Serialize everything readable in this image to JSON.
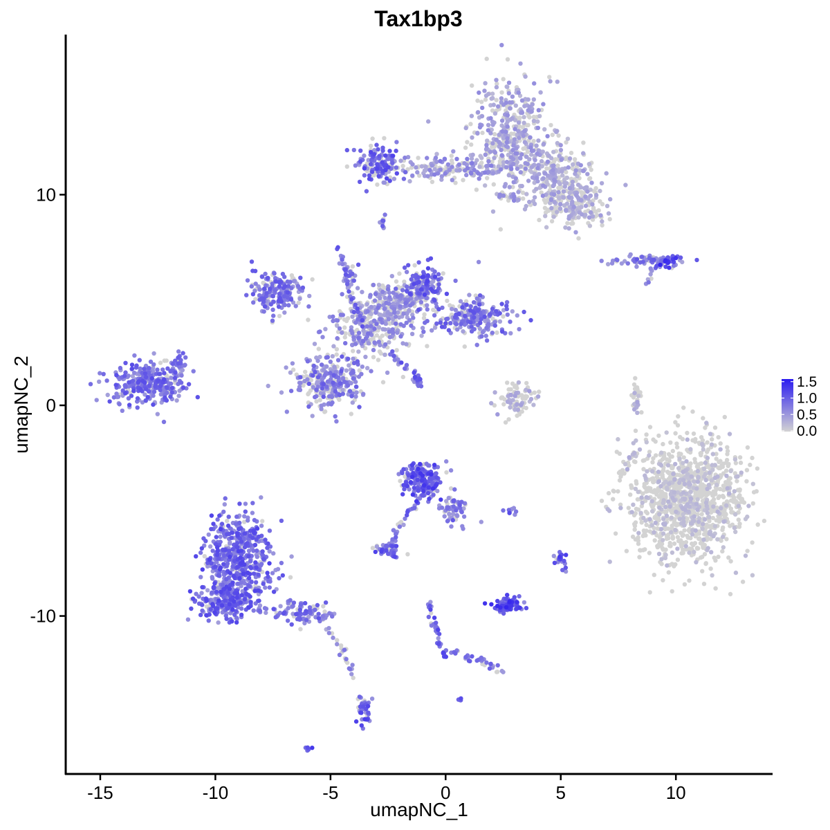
{
  "chart_data": {
    "type": "scatter",
    "title": "Tax1bp3",
    "xlabel": "umapNC_1",
    "ylabel": "umapNC_2",
    "xlim": [
      -16.5,
      14.2
    ],
    "ylim": [
      -17.5,
      17.6
    ],
    "x_ticks": [
      -15,
      -10,
      -5,
      0,
      5,
      10
    ],
    "x_tick_labels": [
      "-15",
      "-10",
      "-5",
      "0",
      "5",
      "10"
    ],
    "y_ticks": [
      10,
      0,
      -10
    ],
    "y_tick_labels": [
      "10",
      "0",
      "-10"
    ],
    "grid": false,
    "color_scale": {
      "low_color": "#d3d3d3",
      "high_color": "#2b1bf0",
      "range": [
        0,
        1.6
      ],
      "ticks": [
        1.5,
        1.0,
        0.5,
        0.0
      ],
      "tick_labels": [
        "1.5",
        "1.0",
        "0.5",
        "0.0"
      ],
      "placement": "right"
    },
    "clusters": [
      {
        "x": 2.8,
        "y": 12.8,
        "rx": 1.6,
        "ry": 2.6,
        "n": 420,
        "expr": 0.45,
        "p": 0.6
      },
      {
        "x": 4.8,
        "y": 11.0,
        "rx": 1.5,
        "ry": 1.2,
        "n": 220,
        "expr": 0.4,
        "p": 0.55
      },
      {
        "x": 5.6,
        "y": 9.6,
        "rx": 1.3,
        "ry": 1.1,
        "n": 200,
        "expr": 0.35,
        "p": 0.5
      },
      {
        "x": 0.0,
        "y": 11.2,
        "rx": 2.8,
        "ry": 0.5,
        "n": 160,
        "expr": 0.55,
        "p": 0.6
      },
      {
        "x": -3.0,
        "y": 11.5,
        "rx": 0.9,
        "ry": 0.8,
        "n": 120,
        "expr": 0.9,
        "p": 0.8
      },
      {
        "x": -2.7,
        "y": 8.7,
        "rx": 0.2,
        "ry": 0.3,
        "n": 10,
        "expr": 0.8,
        "p": 0.7
      },
      {
        "x": 8.8,
        "y": 6.9,
        "rx": 1.5,
        "ry": 0.2,
        "n": 70,
        "expr": 0.8,
        "p": 0.7
      },
      {
        "x": 9.6,
        "y": 6.8,
        "rx": 0.5,
        "ry": 0.3,
        "n": 30,
        "expr": 1.1,
        "p": 0.9
      },
      {
        "x": -7.3,
        "y": 5.4,
        "rx": 1.0,
        "ry": 0.9,
        "n": 190,
        "expr": 0.8,
        "p": 0.8
      },
      {
        "x": -1.0,
        "y": 5.6,
        "rx": 0.8,
        "ry": 0.9,
        "n": 170,
        "expr": 0.9,
        "p": 0.8
      },
      {
        "x": 1.1,
        "y": 4.2,
        "rx": 1.5,
        "ry": 0.8,
        "n": 220,
        "expr": 0.8,
        "p": 0.75
      },
      {
        "x": -3.3,
        "y": 3.6,
        "rx": 1.6,
        "ry": 1.2,
        "n": 260,
        "expr": 0.6,
        "p": 0.6
      },
      {
        "x": -5.0,
        "y": 1.1,
        "rx": 1.4,
        "ry": 1.1,
        "n": 280,
        "expr": 0.75,
        "p": 0.65
      },
      {
        "x": -2.3,
        "y": 4.8,
        "rx": 1.2,
        "ry": 1.0,
        "n": 180,
        "expr": 0.55,
        "p": 0.55
      },
      {
        "x": -4.2,
        "y": 6.0,
        "rx": 0.3,
        "ry": 1.3,
        "n": 25,
        "expr": 0.8,
        "p": 0.8
      },
      {
        "x": -13.0,
        "y": 1.0,
        "rx": 1.5,
        "ry": 0.9,
        "n": 280,
        "expr": 0.85,
        "p": 0.9
      },
      {
        "x": -11.7,
        "y": 1.9,
        "rx": 0.4,
        "ry": 0.6,
        "n": 30,
        "expr": 0.8,
        "p": 0.85
      },
      {
        "x": 3.1,
        "y": 0.3,
        "rx": 0.9,
        "ry": 0.7,
        "n": 80,
        "expr": 0.35,
        "p": 0.4
      },
      {
        "x": 8.3,
        "y": 0.3,
        "rx": 0.2,
        "ry": 0.9,
        "n": 30,
        "expr": 0.3,
        "p": 0.3
      },
      {
        "x": 10.5,
        "y": -4.5,
        "rx": 2.2,
        "ry": 2.6,
        "n": 1200,
        "expr": 0.2,
        "p": 0.22
      },
      {
        "x": -1.0,
        "y": -3.6,
        "rx": 0.8,
        "ry": 0.8,
        "n": 200,
        "expr": 1.0,
        "p": 0.85
      },
      {
        "x": 0.3,
        "y": -5.0,
        "rx": 0.6,
        "ry": 0.6,
        "n": 60,
        "expr": 0.8,
        "p": 0.75
      },
      {
        "x": -2.5,
        "y": -6.9,
        "rx": 0.5,
        "ry": 0.3,
        "n": 45,
        "expr": 0.9,
        "p": 0.85
      },
      {
        "x": 2.7,
        "y": -9.5,
        "rx": 0.7,
        "ry": 0.35,
        "n": 80,
        "expr": 1.1,
        "p": 0.95
      },
      {
        "x": 5.0,
        "y": -7.3,
        "rx": 0.25,
        "ry": 0.25,
        "n": 15,
        "expr": 1.0,
        "p": 0.9
      },
      {
        "x": 2.8,
        "y": -5.0,
        "rx": 0.25,
        "ry": 0.12,
        "n": 10,
        "expr": 1.0,
        "p": 0.9
      },
      {
        "x": -9.0,
        "y": -7.3,
        "rx": 1.3,
        "ry": 1.9,
        "n": 500,
        "expr": 0.9,
        "p": 0.92
      },
      {
        "x": -9.5,
        "y": -9.3,
        "rx": 1.2,
        "ry": 0.8,
        "n": 200,
        "expr": 0.9,
        "p": 0.92
      },
      {
        "x": -6.2,
        "y": -9.8,
        "rx": 1.3,
        "ry": 0.5,
        "n": 90,
        "expr": 0.8,
        "p": 0.85
      },
      {
        "x": -3.5,
        "y": -14.5,
        "rx": 0.3,
        "ry": 0.8,
        "n": 40,
        "expr": 0.95,
        "p": 0.9
      },
      {
        "x": -6.0,
        "y": -16.3,
        "rx": 0.15,
        "ry": 0.1,
        "n": 6,
        "expr": 1.0,
        "p": 0.9
      },
      {
        "x": 0.6,
        "y": -14.0,
        "rx": 0.15,
        "ry": 0.1,
        "n": 4,
        "expr": 0.9,
        "p": 0.9
      }
    ],
    "paths": [
      {
        "pts": [
          [
            -4.6,
            7.5
          ],
          [
            -4.1,
            5.2
          ],
          [
            -3.5,
            3.8
          ]
        ],
        "n": 40,
        "expr": 0.85,
        "p": 0.8
      },
      {
        "pts": [
          [
            -2.6,
            2.7
          ],
          [
            -1.4,
            1.5
          ],
          [
            -1.1,
            0.9
          ]
        ],
        "n": 40,
        "expr": 0.85,
        "p": 0.85
      },
      {
        "pts": [
          [
            2.3,
            10.0
          ],
          [
            3.2,
            9.8
          ]
        ],
        "n": 20,
        "expr": 0.5,
        "p": 0.6
      },
      {
        "pts": [
          [
            -1.0,
            -4.2
          ],
          [
            -2.0,
            -5.8
          ],
          [
            -2.5,
            -6.9
          ]
        ],
        "n": 35,
        "expr": 0.85,
        "p": 0.85
      },
      {
        "pts": [
          [
            -0.8,
            -9.3
          ],
          [
            -0.3,
            -11.2
          ],
          [
            0.0,
            -12.0
          ]
        ],
        "n": 40,
        "expr": 0.9,
        "p": 0.85
      },
      {
        "pts": [
          [
            0.0,
            -11.6
          ],
          [
            1.5,
            -12.1
          ],
          [
            2.6,
            -12.7
          ]
        ],
        "n": 35,
        "expr": 0.75,
        "p": 0.75
      },
      {
        "pts": [
          [
            -5.5,
            -10.0
          ],
          [
            -4.5,
            -11.5
          ],
          [
            -4.0,
            -13.0
          ]
        ],
        "n": 30,
        "expr": 0.6,
        "p": 0.6
      },
      {
        "pts": [
          [
            7.5,
            -3.5
          ],
          [
            8.2,
            -2.2
          ]
        ],
        "n": 20,
        "expr": 0.4,
        "p": 0.4
      },
      {
        "pts": [
          [
            5.0,
            -7.0
          ],
          [
            5.3,
            -8.0
          ]
        ],
        "n": 10,
        "expr": 1.0,
        "p": 0.9
      },
      {
        "pts": [
          [
            9.0,
            6.5
          ],
          [
            8.7,
            5.8
          ]
        ],
        "n": 8,
        "expr": 0.7,
        "p": 0.7
      }
    ]
  }
}
